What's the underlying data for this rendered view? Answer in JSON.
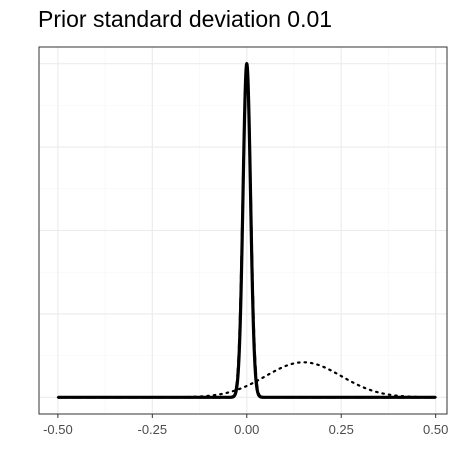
{
  "chart_data": {
    "type": "line",
    "title": "Prior standard deviation 0.01",
    "xlabel": "",
    "ylabel": "",
    "xlim": [
      -0.55,
      0.53
    ],
    "ylim": [
      -0.05,
      1.05
    ],
    "x_ticks": [
      -0.5,
      -0.25,
      0.0,
      0.25,
      0.5
    ],
    "x_tick_labels": [
      "-0.50",
      "-0.25",
      "0.00",
      "0.25",
      "0.50"
    ],
    "y_ticks_labeled": false,
    "grid": true,
    "legend": "none",
    "series": [
      {
        "linestyle": "solid",
        "description_points": [
          [
            -0.5,
            0.0
          ],
          [
            -0.05,
            0.0
          ],
          [
            0.0,
            1.0
          ],
          [
            0.05,
            0.0
          ],
          [
            0.5,
            0.0
          ]
        ],
        "distribution": "normal",
        "mean": 0.0,
        "sd": 0.01,
        "peak": 1.0
      },
      {
        "linestyle": "dashed",
        "distribution": "normal",
        "mean": 0.0,
        "sd": 0.0105,
        "peak": 0.98
      },
      {
        "linestyle": "dotted",
        "distribution": "normal",
        "mean": 0.15,
        "sd": 0.1,
        "peak": 0.105
      }
    ],
    "colors": {
      "lines": "#000000",
      "grid_major": "#ebebeb",
      "grid_minor": "#f5f5f5",
      "panel_border": "#333333",
      "tick_text": "#4d4d4d"
    }
  }
}
